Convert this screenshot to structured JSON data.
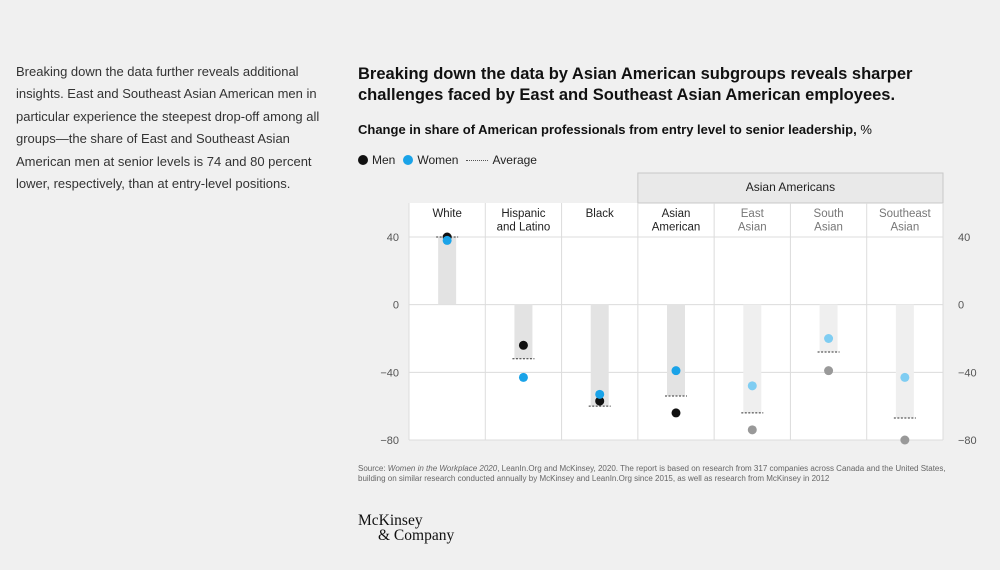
{
  "side_text": "Breaking down the data further reveals additional insights. East and Southeast Asian American men in particular experience the steepest drop-off among all groups—the share of East and Southeast Asian American men at senior levels is 74 and 80 percent lower, respectively, than at entry-level positions.",
  "title": "Breaking down the data by Asian American subgroups reveals sharper challenges faced by East and Southeast Asian American employees.",
  "subtitle": "Change in share of American professionals from entry level to senior leadership,",
  "subtitle_unit": "%",
  "legend": {
    "men": "Men",
    "women": "Women",
    "average": "Average"
  },
  "group_label": "Asian Americans",
  "source": {
    "prefix": "Source: ",
    "italic": "Women in the Workplace 2020",
    "rest": ", LeanIn.Org and McKinsey, 2020. The report is based on research from 317 companies across Canada and the United States, building on similar research conducted annually by McKinsey and LeanIn.Org since 2015, as well as research from McKinsey in 2012"
  },
  "logo": [
    "McKinsey",
    "& Company"
  ],
  "colors": {
    "men": "#111111",
    "women": "#1aa3e8",
    "men_muted": "#999999",
    "women_muted": "#7fcdf2",
    "bar": "#e3e3e3",
    "bar_muted": "#efefef",
    "group_header_bg": "#e9e9e9"
  },
  "chart_data": {
    "type": "scatter",
    "title": "Breaking down the data by Asian American subgroups reveals sharper challenges faced by East and Southeast Asian American employees.",
    "subtitle": "Change in share of American professionals from entry level to senior leadership, %",
    "ylim": [
      -80,
      40
    ],
    "yticks": [
      40,
      0,
      -40,
      -80
    ],
    "ytick_labels": [
      "40",
      "0",
      "−40",
      "−80"
    ],
    "grid": true,
    "legend_position": "top-left",
    "categories": [
      {
        "label": [
          "White"
        ],
        "men": 40,
        "women": 38,
        "average": 40,
        "muted": false
      },
      {
        "label": [
          "Hispanic",
          "and Latino"
        ],
        "men": -24,
        "women": -43,
        "average": -32,
        "muted": false
      },
      {
        "label": [
          "Black"
        ],
        "men": -57,
        "women": -53,
        "average": -60,
        "muted": false
      },
      {
        "label": [
          "Asian",
          "American"
        ],
        "men": -64,
        "women": -39,
        "average": -54,
        "muted": false
      },
      {
        "label": [
          "East",
          "Asian"
        ],
        "men": -74,
        "women": -48,
        "average": -64,
        "muted": true
      },
      {
        "label": [
          "South",
          "Asian"
        ],
        "men": -39,
        "women": -20,
        "average": -28,
        "muted": true
      },
      {
        "label": [
          "Southeast",
          "Asian"
        ],
        "men": -80,
        "women": -43,
        "average": -67,
        "muted": true
      }
    ]
  }
}
